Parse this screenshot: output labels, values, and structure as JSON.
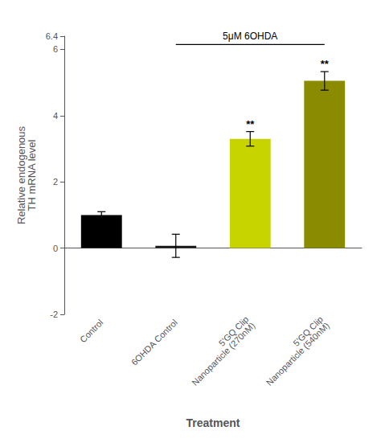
{
  "chart_data": {
    "type": "bar",
    "categories": [
      "Control",
      "6OHDA Control",
      "5'GQ Clip\nNanoparticle (270nM)",
      "5'GQ Clip\nNanoparticle (540nM)"
    ],
    "values": [
      1.0,
      0.07,
      3.3,
      5.05
    ],
    "errors": [
      0.1,
      0.35,
      0.22,
      0.28
    ],
    "colors": [
      "#000000",
      "#1a1a1a",
      "#c8d400",
      "#8b8b00"
    ],
    "ylim": [
      -2,
      6.4
    ],
    "yticks": [
      -2,
      0,
      2,
      4,
      6
    ],
    "ylabel": "Relative endogenous\nTH mRNA level",
    "xlabel": "Treatment",
    "significance": [
      false,
      false,
      true,
      true
    ],
    "significance_label": "**",
    "annotations": [
      {
        "text": "5μM 6OHDA",
        "x_start": "6OHDA Control",
        "x_end": "5'GQ Clip\nNanoparticle (540nM)",
        "y": 6.15
      }
    ],
    "grid": false
  }
}
